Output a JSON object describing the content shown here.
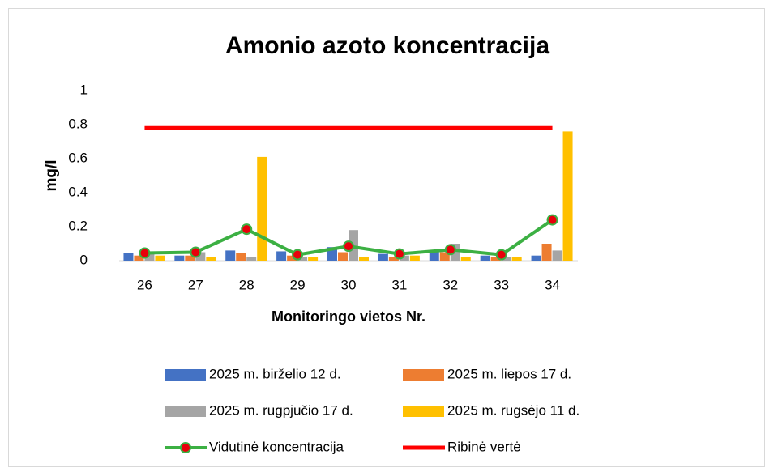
{
  "chart_data": {
    "type": "bar",
    "title": "Amonio azoto koncentracija",
    "x_label": "Monitoringo vietos Nr.",
    "y_label": "mg/l",
    "categories": [
      "26",
      "27",
      "28",
      "29",
      "30",
      "31",
      "32",
      "33",
      "34"
    ],
    "series": [
      {
        "name": "2025 m. birželio 12 d.",
        "type": "bar",
        "color": "#4472c4",
        "values": [
          0.045,
          0.03,
          0.06,
          0.055,
          0.08,
          0.04,
          0.05,
          0.03,
          0.03
        ]
      },
      {
        "name": "2025 m. liepos 17 d.",
        "type": "bar",
        "color": "#ed7d31",
        "values": [
          0.03,
          0.03,
          0.045,
          0.03,
          0.05,
          0.02,
          0.05,
          0.02,
          0.1
        ]
      },
      {
        "name": "2025 m. rugpjūčio 17 d.",
        "type": "bar",
        "color": "#a5a5a5",
        "values": [
          0.04,
          0.05,
          0.02,
          0.02,
          0.18,
          0.03,
          0.1,
          0.02,
          0.06
        ]
      },
      {
        "name": "2025 m. rugsėjo 11 d.",
        "type": "bar",
        "color": "#ffc000",
        "values": [
          0.03,
          0.02,
          0.61,
          0.02,
          0.02,
          0.03,
          0.02,
          0.02,
          0.76
        ]
      },
      {
        "name": "Vidutinė koncentracija",
        "type": "line",
        "color": "#3cb043",
        "marker_color": "#e8000b",
        "markers": true,
        "values": [
          0.045,
          0.05,
          0.185,
          0.035,
          0.085,
          0.04,
          0.065,
          0.035,
          0.24
        ]
      },
      {
        "name": "Ribinė vertė",
        "type": "line",
        "color": "#ff0000",
        "markers": false,
        "values": [
          0.78,
          0.78,
          0.78,
          0.78,
          0.78,
          0.78,
          0.78,
          0.78,
          0.78
        ]
      }
    ],
    "ylim": [
      0,
      1
    ],
    "yticks": [
      0,
      0.2,
      0.4,
      0.6,
      0.8,
      1
    ],
    "grid": false,
    "legend": "bottom"
  }
}
